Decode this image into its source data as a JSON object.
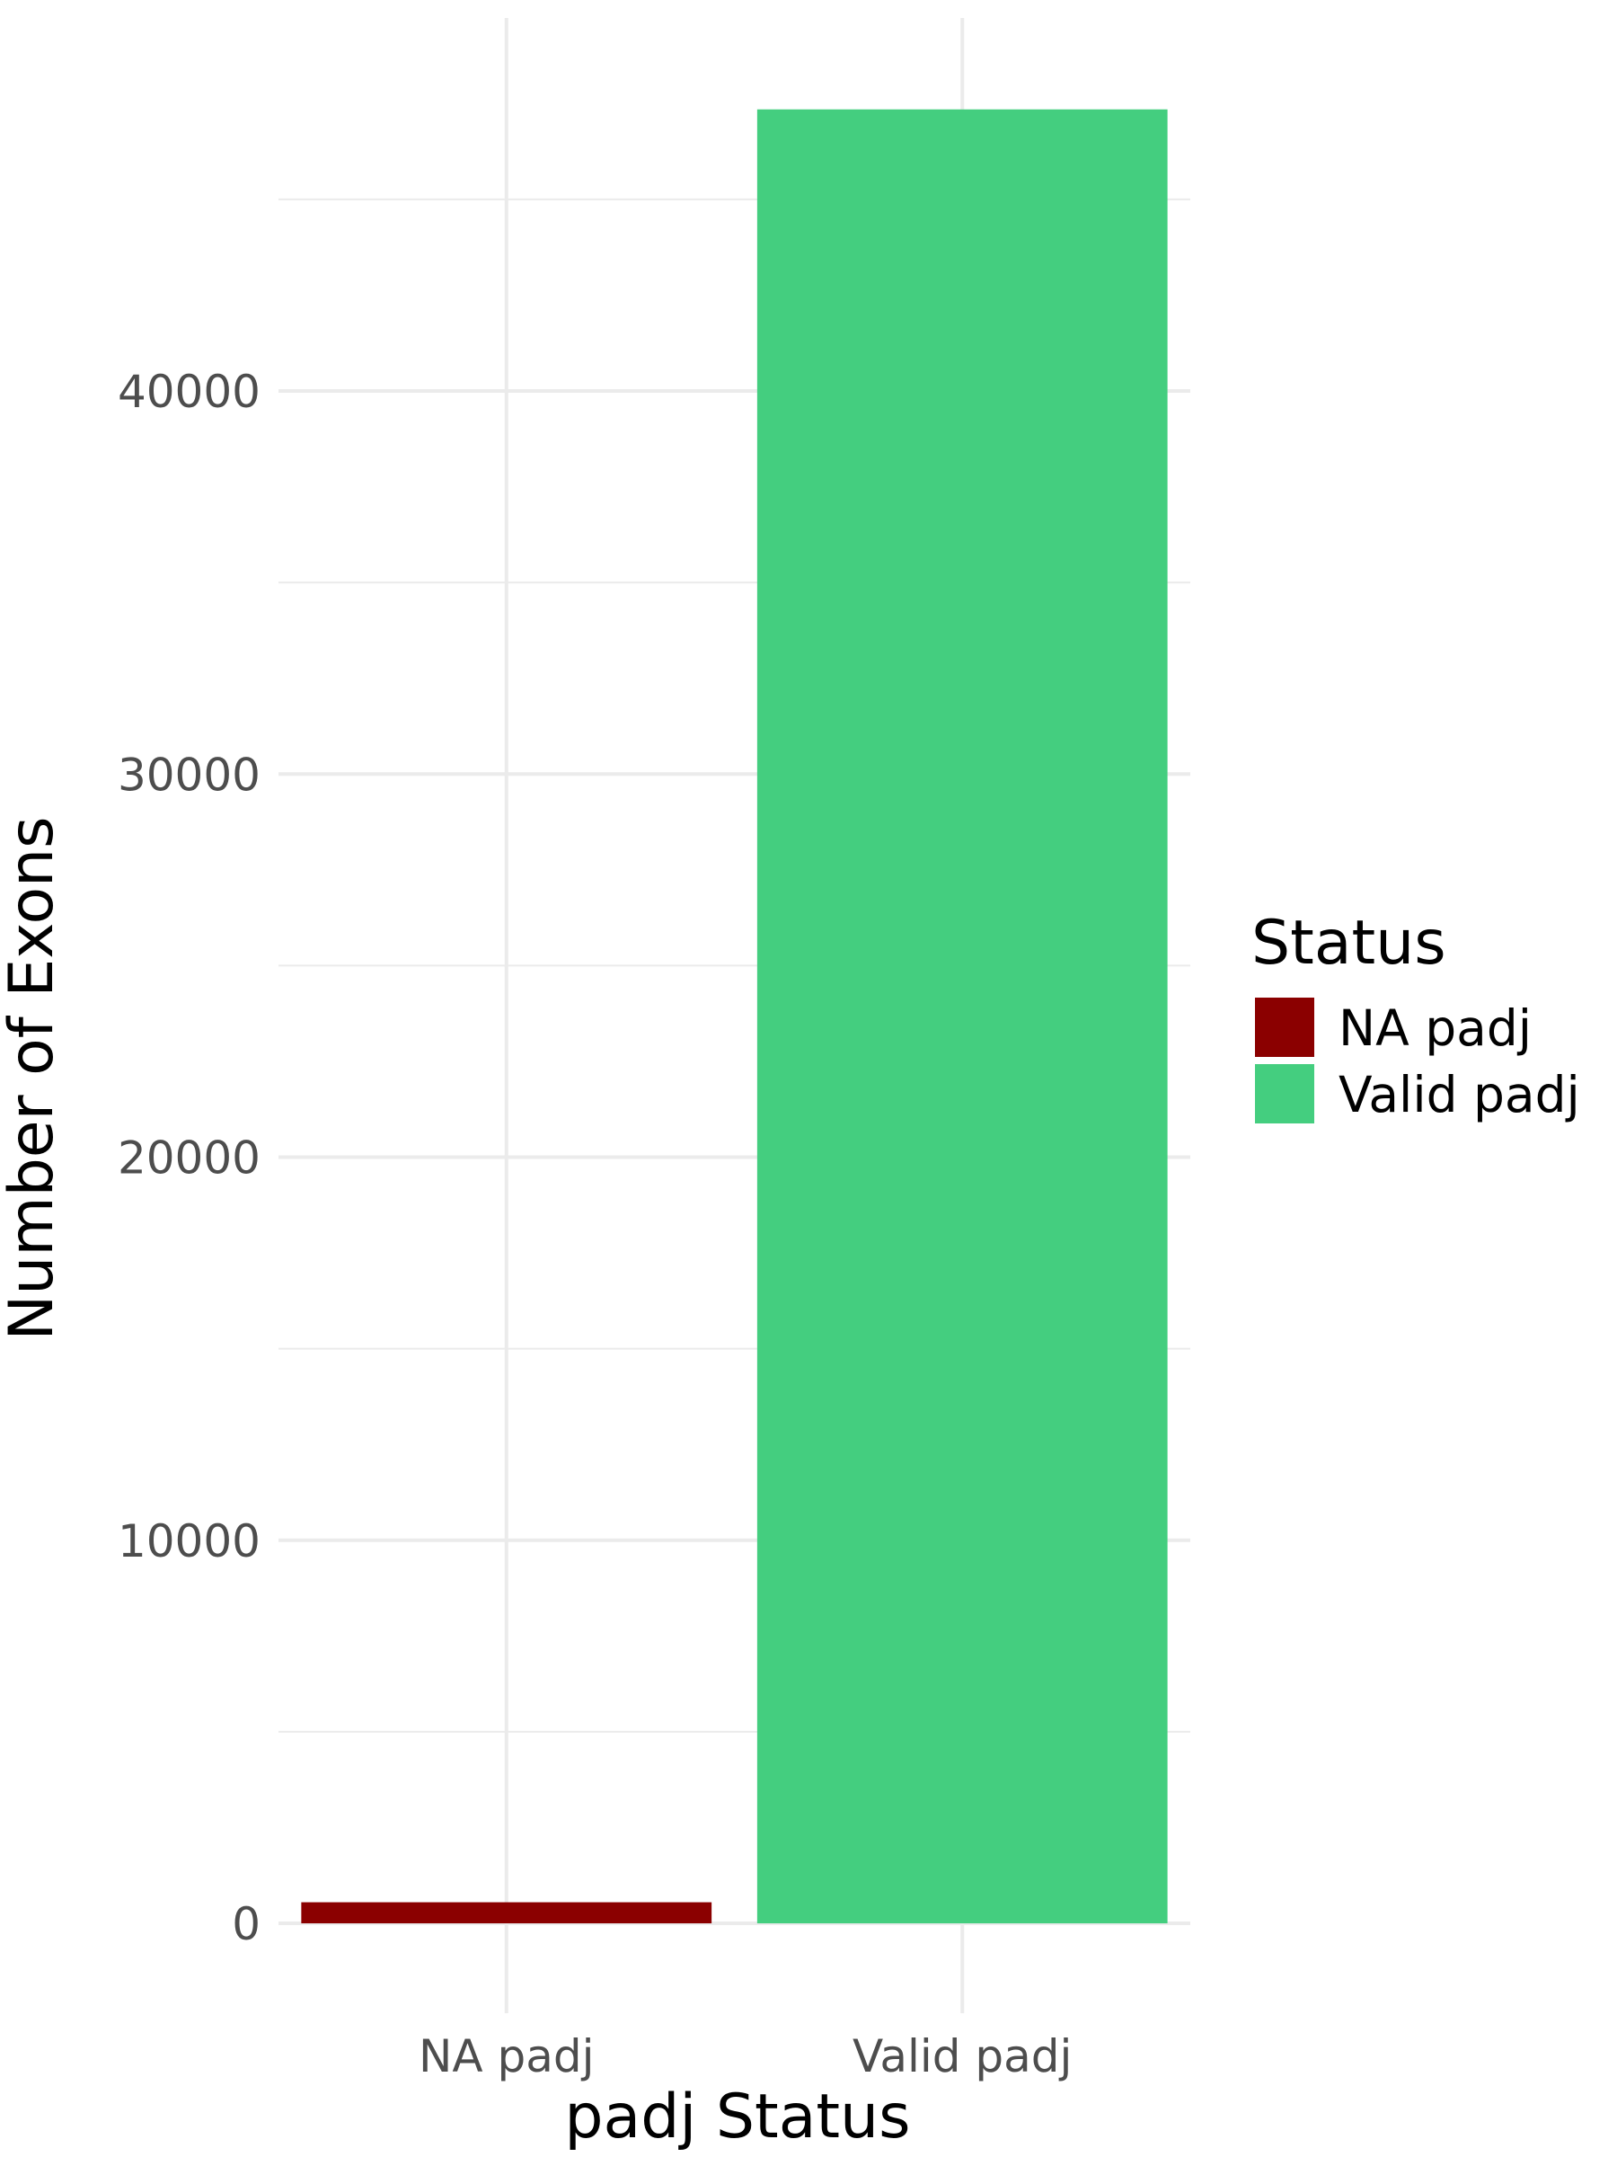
{
  "chart_data": {
    "type": "bar",
    "categories": [
      "NA padj",
      "Valid padj"
    ],
    "values": [
      550,
      47350
    ],
    "colors": [
      "#8B0000",
      "#44CE7F"
    ],
    "xlabel": "padj Status",
    "ylabel": "Number of Exons",
    "ylim": [
      0,
      49500
    ],
    "yticks": [
      0,
      10000,
      20000,
      30000,
      40000
    ],
    "yticks_minor": [
      5000,
      15000,
      25000,
      35000,
      45000
    ],
    "grid": true,
    "legend": {
      "title": "Status",
      "placement": "right",
      "entries": [
        {
          "label": "NA padj",
          "color": "#8B0000"
        },
        {
          "label": "Valid padj",
          "color": "#44CE7F"
        }
      ]
    }
  }
}
